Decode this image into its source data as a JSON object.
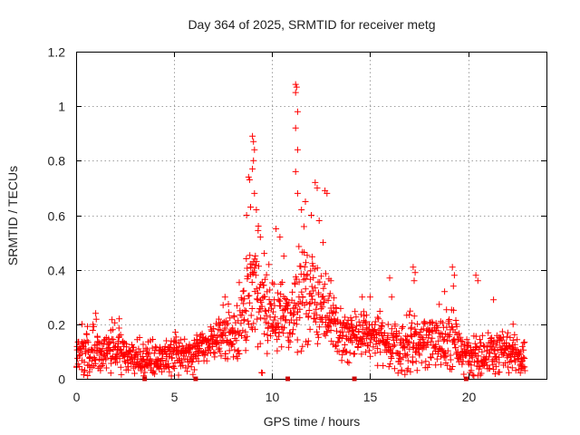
{
  "chart_data": {
    "type": "scatter",
    "title": "Day 364 of 2025, SRMTID for receiver metg",
    "xlabel": "GPS time / hours",
    "ylabel": "SRMTID / TECUs",
    "xlim": [
      0,
      24
    ],
    "ylim": [
      0,
      1.2
    ],
    "x_ticks": [
      0,
      5,
      10,
      15,
      20
    ],
    "x_tick_labels": [
      "0",
      "5",
      "10",
      "15",
      "20"
    ],
    "y_ticks": [
      0,
      0.2,
      0.4,
      0.6,
      0.8,
      1,
      1.2
    ],
    "y_tick_labels": [
      "0",
      "0.2",
      "0.4",
      "0.6",
      "0.8",
      "1",
      "1.2"
    ],
    "grid": true,
    "marker": "+",
    "series_color": "#ff0000",
    "marker_color": "#cc0000",
    "baseline_markers_x": [
      3.5,
      6.1,
      10.8,
      14.2,
      19.9
    ],
    "envelope": [
      {
        "x": 0.0,
        "base": 0.09,
        "spread": 0.06
      },
      {
        "x": 1.0,
        "base": 0.1,
        "spread": 0.07
      },
      {
        "x": 2.0,
        "base": 0.11,
        "spread": 0.06
      },
      {
        "x": 3.0,
        "base": 0.08,
        "spread": 0.05
      },
      {
        "x": 4.0,
        "base": 0.07,
        "spread": 0.05
      },
      {
        "x": 5.0,
        "base": 0.09,
        "spread": 0.05
      },
      {
        "x": 6.0,
        "base": 0.09,
        "spread": 0.04
      },
      {
        "x": 7.0,
        "base": 0.14,
        "spread": 0.05
      },
      {
        "x": 8.0,
        "base": 0.17,
        "spread": 0.07
      },
      {
        "x": 8.6,
        "base": 0.24,
        "spread": 0.14
      },
      {
        "x": 9.2,
        "base": 0.31,
        "spread": 0.16
      },
      {
        "x": 10.0,
        "base": 0.24,
        "spread": 0.12
      },
      {
        "x": 10.8,
        "base": 0.2,
        "spread": 0.1
      },
      {
        "x": 11.5,
        "base": 0.32,
        "spread": 0.16
      },
      {
        "x": 12.5,
        "base": 0.27,
        "spread": 0.12
      },
      {
        "x": 13.5,
        "base": 0.17,
        "spread": 0.08
      },
      {
        "x": 14.5,
        "base": 0.16,
        "spread": 0.07
      },
      {
        "x": 15.5,
        "base": 0.16,
        "spread": 0.06
      },
      {
        "x": 16.0,
        "base": 0.11,
        "spread": 0.06
      },
      {
        "x": 17.0,
        "base": 0.14,
        "spread": 0.09
      },
      {
        "x": 18.0,
        "base": 0.13,
        "spread": 0.07
      },
      {
        "x": 19.0,
        "base": 0.15,
        "spread": 0.09
      },
      {
        "x": 20.0,
        "base": 0.08,
        "spread": 0.05
      },
      {
        "x": 21.0,
        "base": 0.09,
        "spread": 0.06
      },
      {
        "x": 22.0,
        "base": 0.11,
        "spread": 0.06
      },
      {
        "x": 22.9,
        "base": 0.09,
        "spread": 0.05
      }
    ],
    "highlight_points": [
      {
        "x": 8.8,
        "y": 0.74
      },
      {
        "x": 8.85,
        "y": 0.73
      },
      {
        "x": 8.7,
        "y": 0.6
      },
      {
        "x": 8.9,
        "y": 0.63
      },
      {
        "x": 9.0,
        "y": 0.89
      },
      {
        "x": 9.05,
        "y": 0.87
      },
      {
        "x": 9.1,
        "y": 0.84
      },
      {
        "x": 9.05,
        "y": 0.8
      },
      {
        "x": 9.0,
        "y": 0.77
      },
      {
        "x": 9.1,
        "y": 0.68
      },
      {
        "x": 9.2,
        "y": 0.62
      },
      {
        "x": 9.3,
        "y": 0.56
      },
      {
        "x": 9.4,
        "y": 0.52
      },
      {
        "x": 9.6,
        "y": 0.46
      },
      {
        "x": 10.2,
        "y": 0.55
      },
      {
        "x": 10.4,
        "y": 0.52
      },
      {
        "x": 10.6,
        "y": 0.45
      },
      {
        "x": 11.2,
        "y": 1.08
      },
      {
        "x": 11.25,
        "y": 1.07
      },
      {
        "x": 11.2,
        "y": 1.05
      },
      {
        "x": 11.3,
        "y": 0.98
      },
      {
        "x": 11.2,
        "y": 0.92
      },
      {
        "x": 11.3,
        "y": 0.84
      },
      {
        "x": 11.2,
        "y": 0.76
      },
      {
        "x": 11.3,
        "y": 0.68
      },
      {
        "x": 11.5,
        "y": 0.62
      },
      {
        "x": 11.7,
        "y": 0.65
      },
      {
        "x": 12.0,
        "y": 0.6
      },
      {
        "x": 12.2,
        "y": 0.72
      },
      {
        "x": 12.3,
        "y": 0.7
      },
      {
        "x": 12.4,
        "y": 0.58
      },
      {
        "x": 12.7,
        "y": 0.69
      },
      {
        "x": 12.8,
        "y": 0.68
      },
      {
        "x": 12.6,
        "y": 0.5
      },
      {
        "x": 13.0,
        "y": 0.36
      },
      {
        "x": 16.0,
        "y": 0.37
      },
      {
        "x": 16.1,
        "y": 0.3
      },
      {
        "x": 17.2,
        "y": 0.41
      },
      {
        "x": 17.3,
        "y": 0.39
      },
      {
        "x": 17.25,
        "y": 0.36
      },
      {
        "x": 18.8,
        "y": 0.32
      },
      {
        "x": 19.2,
        "y": 0.41
      },
      {
        "x": 19.3,
        "y": 0.38
      },
      {
        "x": 19.25,
        "y": 0.34
      },
      {
        "x": 20.4,
        "y": 0.38
      },
      {
        "x": 20.5,
        "y": 0.36
      },
      {
        "x": 21.3,
        "y": 0.29
      },
      {
        "x": 1.0,
        "y": 0.24
      },
      {
        "x": 2.2,
        "y": 0.22
      },
      {
        "x": 0.3,
        "y": 0.2
      },
      {
        "x": 7.5,
        "y": 0.27
      },
      {
        "x": 7.6,
        "y": 0.3
      },
      {
        "x": 14.6,
        "y": 0.3
      },
      {
        "x": 15.0,
        "y": 0.3
      },
      {
        "x": 22.3,
        "y": 0.2
      },
      {
        "x": 22.9,
        "y": 0.03
      }
    ]
  }
}
